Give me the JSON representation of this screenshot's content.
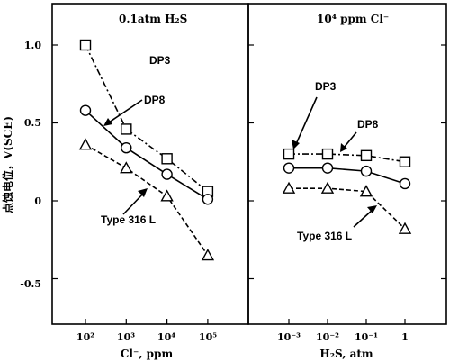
{
  "chart_data": [
    {
      "type": "line",
      "title": "0.1atm H₂S",
      "xlabel": "Cl⁻, ppm",
      "ylabel": "点蚀电位，V(SCE)",
      "xscale": "log",
      "x": [
        100,
        1000,
        10000,
        100000
      ],
      "xticks": [
        "10²",
        "10³",
        "10⁴",
        "10⁵"
      ],
      "yticks": [
        "1.0",
        "0.5",
        "0",
        "-0.5"
      ],
      "ylim": [
        -0.75,
        1.25
      ],
      "grid": false,
      "series": [
        {
          "name": "DP3",
          "marker": "square",
          "dash": "dash-dot",
          "values": [
            1.0,
            0.46,
            0.27,
            0.06
          ]
        },
        {
          "name": "DP8",
          "marker": "circle",
          "dash": "solid",
          "values": [
            0.58,
            0.34,
            0.17,
            0.01
          ]
        },
        {
          "name": "Type 316 L",
          "marker": "triangle",
          "dash": "dashed",
          "values": [
            0.36,
            0.21,
            0.03,
            -0.35
          ]
        }
      ]
    },
    {
      "type": "line",
      "title": "10⁴ ppm Cl⁻",
      "xlabel": "H₂S, atm",
      "xscale": "log",
      "x": [
        0.001,
        0.01,
        0.1,
        1
      ],
      "xticks": [
        "10⁻³",
        "10⁻²",
        "10⁻¹",
        "1"
      ],
      "ylim": [
        -0.75,
        1.25
      ],
      "grid": false,
      "series": [
        {
          "name": "DP3",
          "marker": "square",
          "dash": "dash-dot",
          "values": [
            0.3,
            0.3,
            0.29,
            0.25
          ]
        },
        {
          "name": "DP8",
          "marker": "circle",
          "dash": "solid",
          "values": [
            0.21,
            0.21,
            0.19,
            0.11
          ]
        },
        {
          "name": "Type 316 L",
          "marker": "triangle",
          "dash": "dashed",
          "values": [
            0.08,
            0.08,
            0.06,
            -0.18
          ]
        }
      ]
    }
  ]
}
